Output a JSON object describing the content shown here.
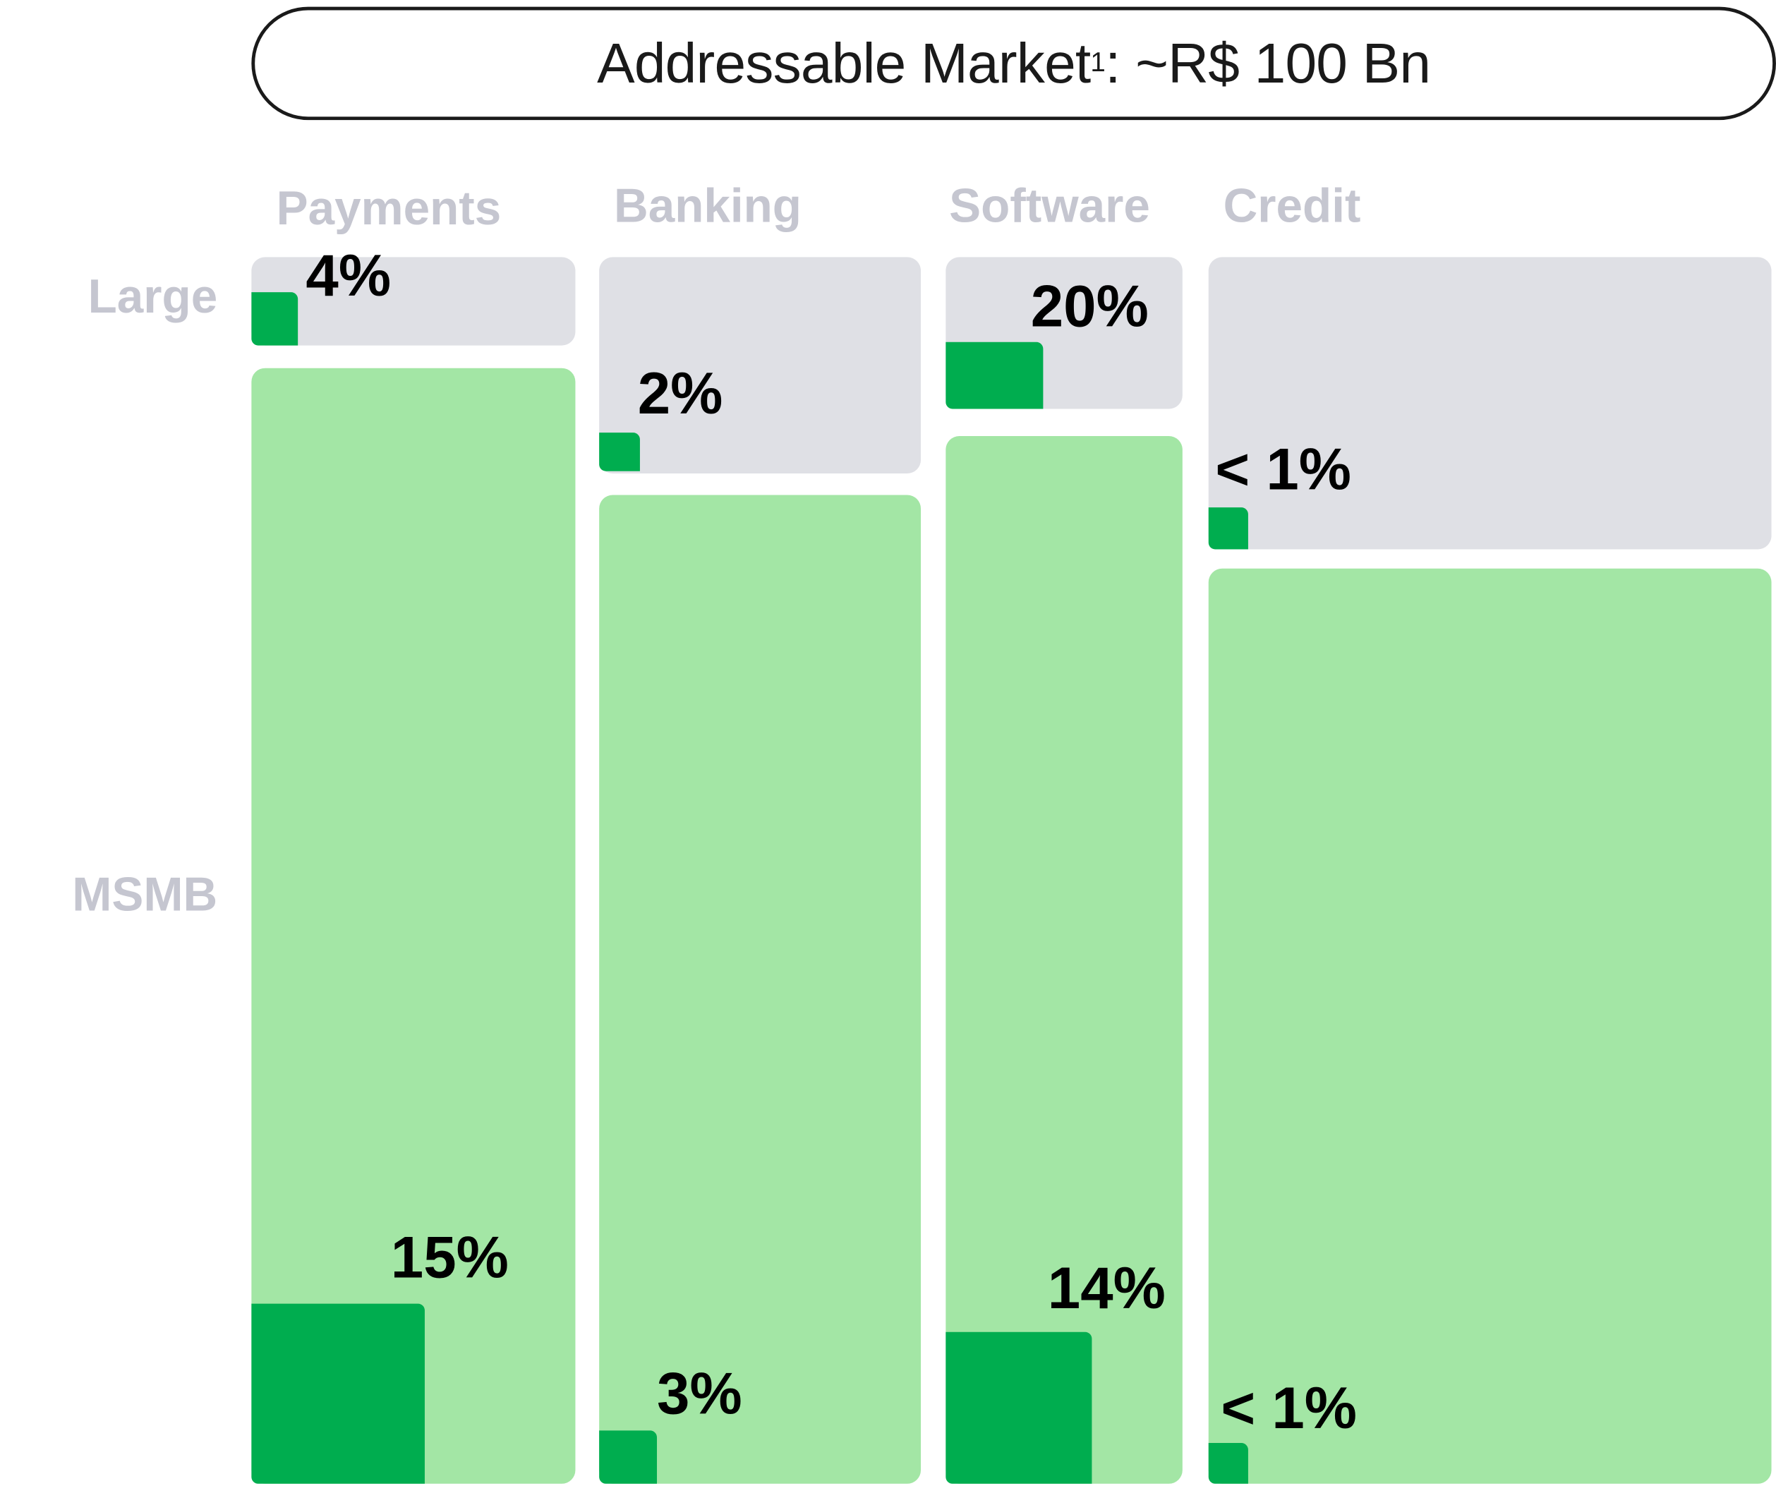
{
  "title": {
    "text": "Addressable Market",
    "superscript": "1",
    "suffix": ": ~R$ 100 Bn"
  },
  "chart_data": {
    "type": "marimekko",
    "title": "Addressable Market¹: ~R$ 100 Bn",
    "categories": [
      "Payments",
      "Banking",
      "Software",
      "Credit"
    ],
    "segments": [
      "Large",
      "MSMB"
    ],
    "series": [
      {
        "name": "Large",
        "share_labels": [
          "4%",
          "2%",
          "20%",
          "< 1%"
        ],
        "share_values": [
          4,
          2,
          20,
          1
        ]
      },
      {
        "name": "MSMB",
        "share_labels": [
          "15%",
          "3%",
          "14%",
          "< 1%"
        ],
        "share_values": [
          15,
          3,
          14,
          1
        ]
      }
    ],
    "colors": {
      "large_segment": "#dfe0e5",
      "msmb_segment": "#a3e6a5",
      "share": "#00ad4f",
      "headers": "#c5c6d0"
    }
  }
}
